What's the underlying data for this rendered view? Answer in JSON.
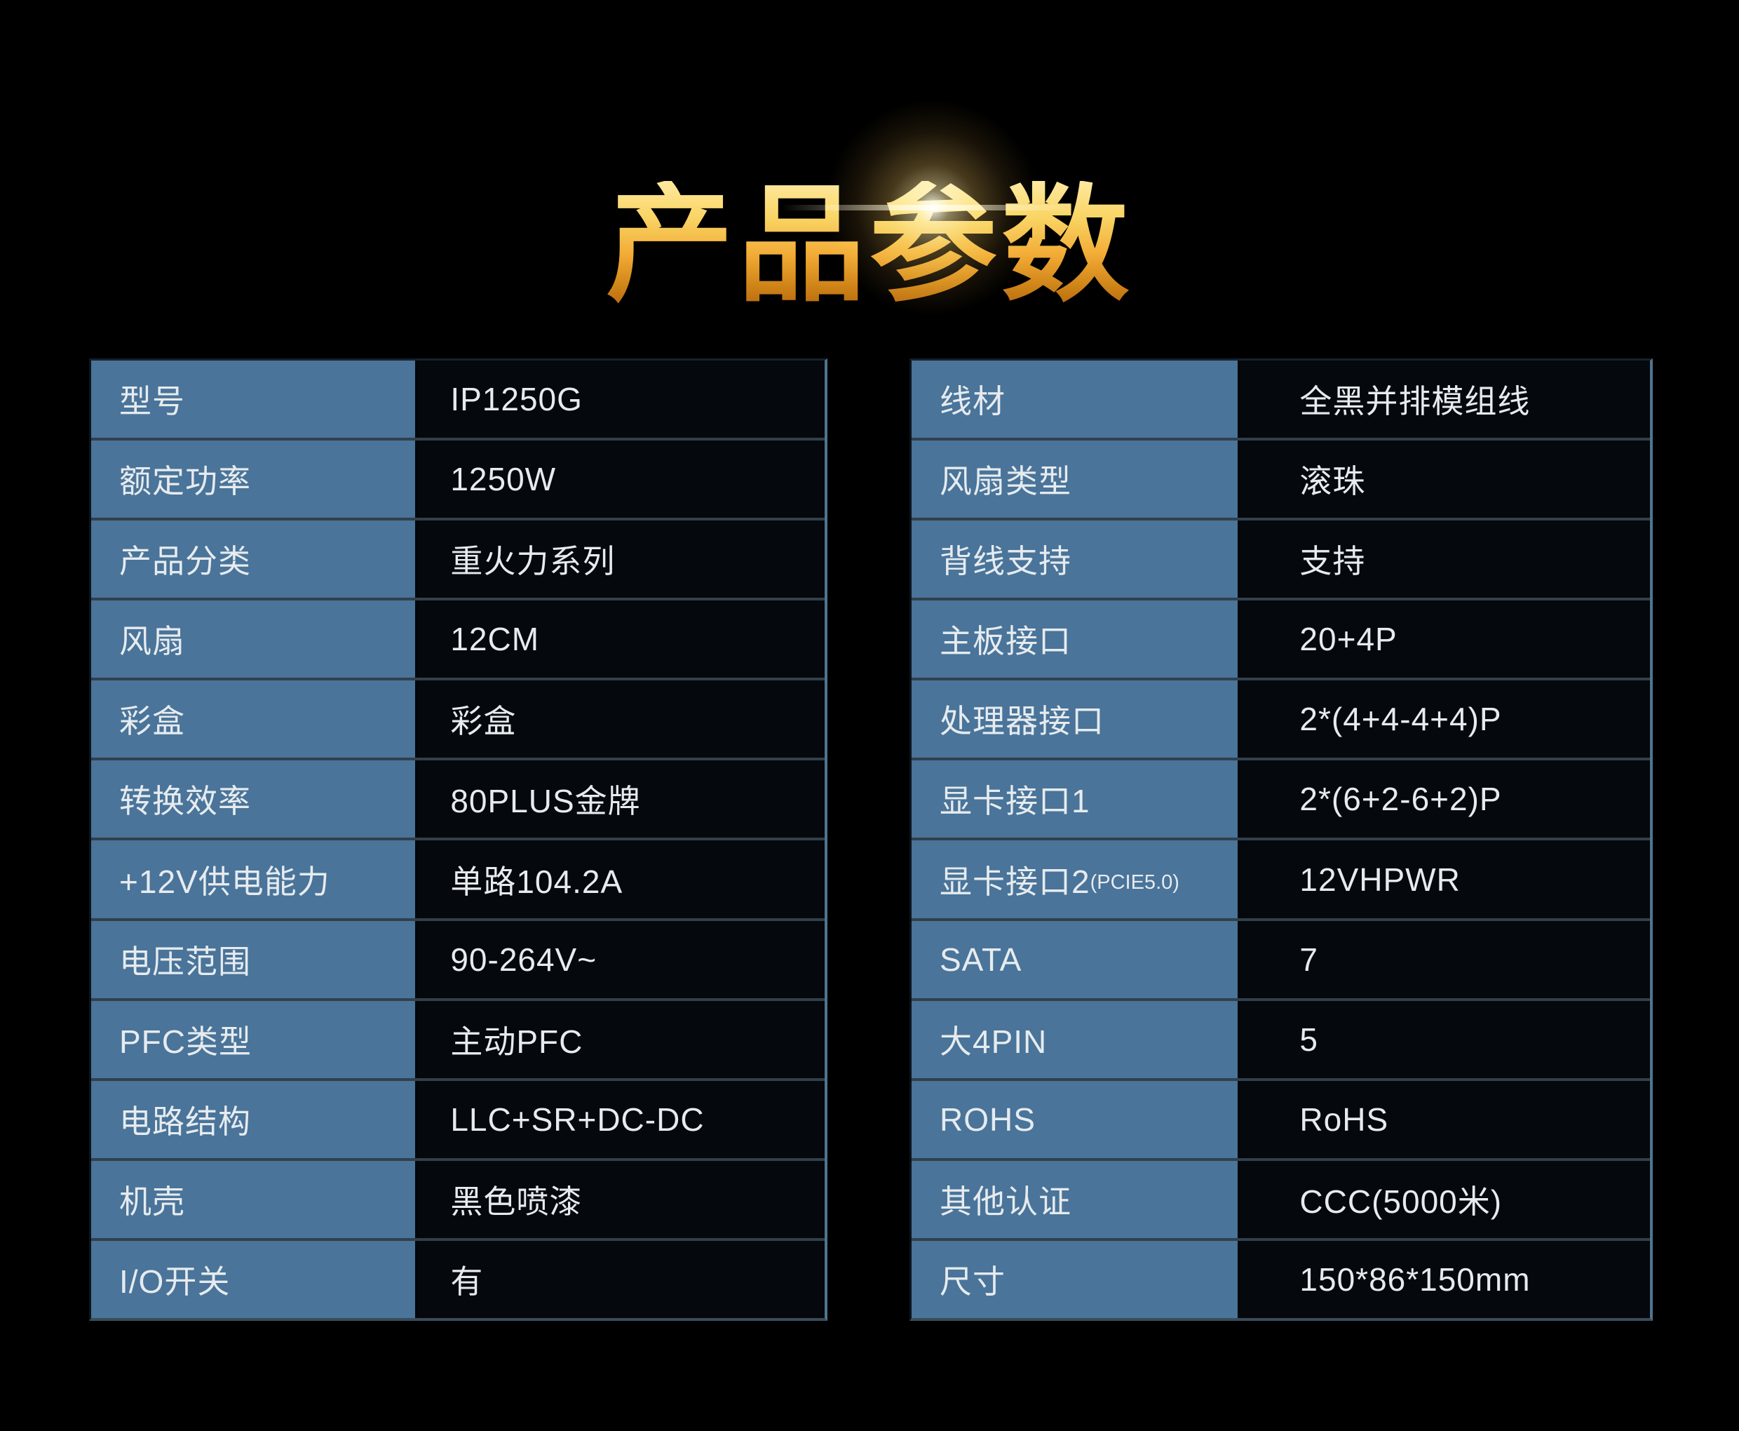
{
  "title": {
    "text": "产品参数"
  },
  "left_table": {
    "rows": [
      {
        "label": "型号",
        "value": "IP1250G"
      },
      {
        "label": "额定功率",
        "value": "1250W"
      },
      {
        "label": "产品分类",
        "value": "重火力系列"
      },
      {
        "label": "风扇",
        "value": "12CM"
      },
      {
        "label": "彩盒",
        "value": "彩盒"
      },
      {
        "label": "转换效率",
        "value": "80PLUS金牌"
      },
      {
        "label": "+12V供电能力",
        "value": "单路104.2A"
      },
      {
        "label": "电压范围",
        "value": "90-264V~"
      },
      {
        "label": "PFC类型",
        "value": "主动PFC"
      },
      {
        "label": "电路结构",
        "value": "LLC+SR+DC-DC"
      },
      {
        "label": "机壳",
        "value": "黑色喷漆"
      },
      {
        "label": "I/O开关",
        "value": "有"
      }
    ]
  },
  "right_table": {
    "rows": [
      {
        "label": "线材",
        "value": "全黑并排模组线"
      },
      {
        "label": "风扇类型",
        "value": "滚珠"
      },
      {
        "label": "背线支持",
        "value": "支持"
      },
      {
        "label": "主板接口",
        "value": "20+4P"
      },
      {
        "label": "处理器接口",
        "value": "2*(4+4-4+4)P"
      },
      {
        "label": "显卡接口1",
        "value": "2*(6+2-6+2)P"
      },
      {
        "label": "显卡接口2",
        "label_suffix": "(PCIE5.0)",
        "value": "12VHPWR"
      },
      {
        "label": "SATA",
        "value": "7"
      },
      {
        "label": "大4PIN",
        "value": "5"
      },
      {
        "label": "ROHS",
        "value": "RoHS"
      },
      {
        "label": "其他认证",
        "value": "CCC(5000米)"
      },
      {
        "label": "尺寸",
        "value": "150*86*150mm"
      }
    ]
  },
  "colors": {
    "background": "#000000",
    "label_cell": "#4a7499",
    "value_cell": "#05080c",
    "cell_text": "#e6ebef",
    "table_border_light": "#4f758f",
    "title_gold_top": "#ffe9a0",
    "title_gold_bottom": "#b5680e"
  }
}
